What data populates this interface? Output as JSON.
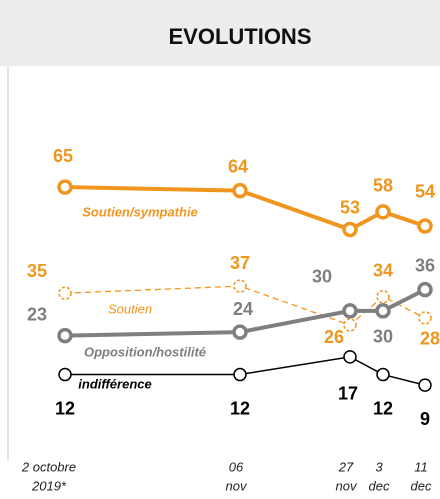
{
  "chart_data": {
    "type": "line",
    "title": "EVOLUTIONS",
    "categories": [
      [
        "2 octobre",
        "2019*"
      ],
      [
        "06",
        "nov"
      ],
      [
        "27",
        "nov"
      ],
      [
        "3",
        "dec"
      ],
      [
        "11",
        "dec"
      ]
    ],
    "ylim": [
      0,
      80
    ],
    "series": [
      {
        "name": "Soutien/sympathie",
        "color": "#f0961e",
        "line_style": "solid",
        "values": [
          65,
          64,
          53,
          58,
          54
        ]
      },
      {
        "name": "Soutien",
        "color": "#f0961e",
        "line_style": "dashed",
        "values": [
          35,
          37,
          26,
          34,
          28
        ]
      },
      {
        "name": "Opposition/hostilité",
        "color": "#7f7f7f",
        "line_style": "solid",
        "values": [
          23,
          24,
          30,
          30,
          36
        ]
      },
      {
        "name": "indifférence",
        "color": "#000000",
        "line_style": "solid",
        "values": [
          12,
          12,
          17,
          12,
          9
        ]
      }
    ]
  }
}
